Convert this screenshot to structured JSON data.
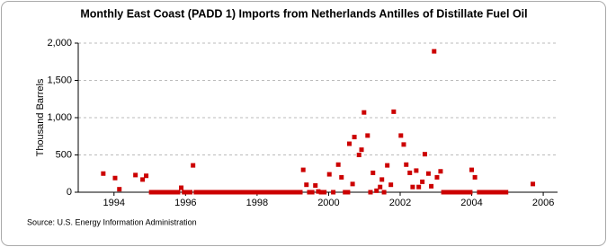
{
  "chart_data": {
    "type": "scatter",
    "title": "Monthly East Coast (PADD 1) Imports from Netherlands Antilles of Distillate Fuel Oil",
    "y_label": "Thousand Barrels",
    "source": "Source: U.S. Energy Information Administration",
    "color": "#cc0000",
    "grid": true,
    "xlim": [
      1993,
      2006.4
    ],
    "xticks": [
      1994,
      1996,
      1998,
      2000,
      2002,
      2004,
      2006
    ],
    "ylim": [
      0,
      2000
    ],
    "yticks": [
      0,
      500,
      {
        "value": 1000,
        "label": "1,000"
      },
      {
        "value": 1500,
        "label": "1,500"
      },
      {
        "value": 2000,
        "label": "2,000"
      }
    ],
    "x": [
      1993.7,
      1994.03,
      1994.15,
      1994.6,
      1994.8,
      1994.9,
      1995.04,
      1995.13,
      1995.21,
      1995.29,
      1995.38,
      1995.46,
      1995.54,
      1995.63,
      1995.71,
      1995.79,
      1995.88,
      1995.96,
      1996.04,
      1996.13,
      1996.21,
      1996.29,
      1996.38,
      1996.46,
      1996.54,
      1996.63,
      1996.71,
      1996.79,
      1996.88,
      1996.96,
      1997.04,
      1997.13,
      1997.21,
      1997.29,
      1997.38,
      1997.46,
      1997.54,
      1997.63,
      1997.71,
      1997.79,
      1997.88,
      1997.96,
      1998.04,
      1998.13,
      1998.21,
      1998.29,
      1998.38,
      1998.46,
      1998.54,
      1998.63,
      1998.71,
      1998.79,
      1998.88,
      1998.96,
      1999.04,
      1999.13,
      1999.21,
      1999.29,
      1999.38,
      1999.46,
      1999.54,
      1999.63,
      1999.71,
      1999.79,
      1999.88,
      2000.02,
      2000.13,
      2000.27,
      2000.36,
      2000.46,
      2000.54,
      2000.58,
      2000.67,
      2000.72,
      2000.85,
      2000.92,
      2000.99,
      2001.09,
      2001.17,
      2001.24,
      2001.34,
      2001.44,
      2001.49,
      2001.55,
      2001.64,
      2001.74,
      2001.82,
      2002.02,
      2002.1,
      2002.17,
      2002.27,
      2002.35,
      2002.45,
      2002.52,
      2002.62,
      2002.69,
      2002.79,
      2002.87,
      2002.95,
      2003.03,
      2003.13,
      2003.21,
      2003.29,
      2003.38,
      2003.46,
      2003.54,
      2003.63,
      2003.71,
      2003.79,
      2003.88,
      2003.96,
      2004.0,
      2004.09,
      2004.21,
      2004.29,
      2004.38,
      2004.46,
      2004.54,
      2004.63,
      2004.71,
      2004.79,
      2004.88,
      2004.96,
      2005.71
    ],
    "values": [
      250,
      190,
      40,
      230,
      170,
      220,
      0,
      0,
      0,
      0,
      0,
      0,
      0,
      0,
      0,
      0,
      60,
      0,
      0,
      0,
      360,
      0,
      0,
      0,
      0,
      0,
      0,
      0,
      0,
      0,
      0,
      0,
      0,
      0,
      0,
      0,
      0,
      0,
      0,
      0,
      0,
      0,
      0,
      0,
      0,
      0,
      0,
      0,
      0,
      0,
      0,
      0,
      0,
      0,
      0,
      0,
      0,
      300,
      100,
      0,
      0,
      90,
      10,
      0,
      0,
      240,
      0,
      370,
      200,
      0,
      0,
      650,
      110,
      740,
      500,
      570,
      1070,
      760,
      0,
      260,
      20,
      70,
      170,
      0,
      360,
      100,
      1080,
      760,
      640,
      370,
      260,
      70,
      290,
      70,
      140,
      510,
      250,
      80,
      1890,
      200,
      280,
      0,
      0,
      0,
      0,
      0,
      0,
      0,
      0,
      0,
      0,
      300,
      200,
      0,
      0,
      0,
      0,
      0,
      0,
      0,
      0,
      0,
      0,
      110
    ]
  }
}
